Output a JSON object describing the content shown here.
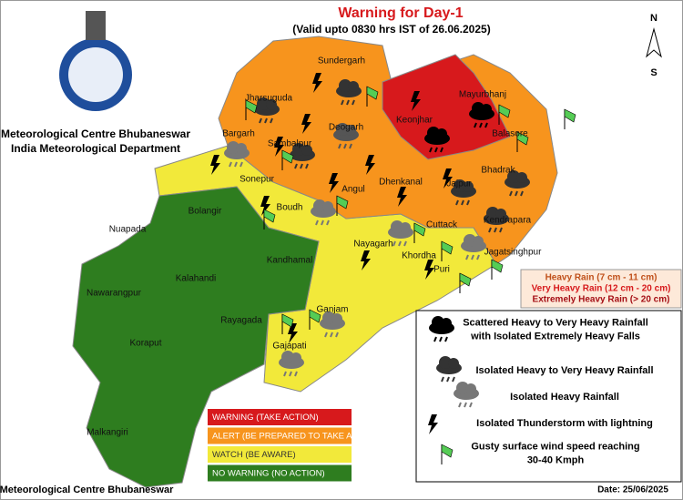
{
  "title": "Warning for Day-1",
  "subtitle": "(Valid upto 0830 hrs IST of 26.06.2025)",
  "organization": [
    "Meteorological Centre Bhubaneswar",
    "India Meteorological Department"
  ],
  "compass": {
    "north": "N",
    "south": "S"
  },
  "districts": [
    {
      "name": "Sundergarh",
      "color": "#f7941d"
    },
    {
      "name": "Jharsuguda",
      "color": "#f7941d"
    },
    {
      "name": "Deogarh",
      "color": "#f7941d"
    },
    {
      "name": "Sambalpur",
      "color": "#f7941d"
    },
    {
      "name": "Bargarh",
      "color": "#f2e93a"
    },
    {
      "name": "Keonjhar",
      "color": "#d7191c"
    },
    {
      "name": "Mayurbhanj",
      "color": "#d7191c"
    },
    {
      "name": "Balasore",
      "color": "#f7941d"
    },
    {
      "name": "Bhadrak",
      "color": "#f7941d"
    },
    {
      "name": "Sonepur",
      "color": "#f2e93a"
    },
    {
      "name": "Angul",
      "color": "#f7941d"
    },
    {
      "name": "Dhenkanal",
      "color": "#f7941d"
    },
    {
      "name": "Jajpur",
      "color": "#f7941d"
    },
    {
      "name": "Boudh",
      "color": "#f2e93a"
    },
    {
      "name": "Bolangir",
      "color": "#2e7d1f"
    },
    {
      "name": "Nuapada",
      "color": "#2e7d1f"
    },
    {
      "name": "Cuttack",
      "color": "#f2e93a"
    },
    {
      "name": "Kendrapara",
      "color": "#f7941d"
    },
    {
      "name": "Jagatsinghpur",
      "color": "#f2e93a"
    },
    {
      "name": "Nayagarh",
      "color": "#f2e93a"
    },
    {
      "name": "Khordha",
      "color": "#f2e93a"
    },
    {
      "name": "Puri",
      "color": "#f2e93a"
    },
    {
      "name": "Kandhamal",
      "color": "#2e7d1f"
    },
    {
      "name": "Kalahandi",
      "color": "#2e7d1f"
    },
    {
      "name": "Nawarangpur",
      "color": "#2e7d1f"
    },
    {
      "name": "Rayagada",
      "color": "#2e7d1f"
    },
    {
      "name": "Ganjam",
      "color": "#f2e93a"
    },
    {
      "name": "Gajapati",
      "color": "#f2e93a"
    },
    {
      "name": "Koraput",
      "color": "#2e7d1f"
    },
    {
      "name": "Malkangiri",
      "color": "#2e7d1f"
    }
  ],
  "rain_legend": [
    {
      "label": "Heavy Rain (7 cm - 11 cm)",
      "color": "#c0501a"
    },
    {
      "label": "Very Heavy Rain (12 cm - 20 cm)",
      "color": "#d7191c"
    },
    {
      "label": "Extremely Heavy Rain (> 20 cm)",
      "color": "#a50f15"
    }
  ],
  "icon_legend": [
    {
      "lines": [
        "Scattered Heavy to Very Heavy Rainfall",
        "with Isolated Extremely Heavy Falls"
      ]
    },
    {
      "lines": [
        "Isolated Heavy to Very Heavy Rainfall"
      ]
    },
    {
      "lines": [
        "Isolated Heavy Rainfall"
      ]
    },
    {
      "lines": [
        "Isolated Thunderstorm with lightning"
      ]
    },
    {
      "lines": [
        "Gusty surface wind speed reaching",
        "30-40 Kmph"
      ]
    }
  ],
  "warning_legend": [
    {
      "label": "WARNING (TAKE ACTION)",
      "color": "#d7191c"
    },
    {
      "label": "ALERT (BE PREPARED TO TAKE ACTION)",
      "color": "#f7941d"
    },
    {
      "label": "WATCH (BE AWARE)",
      "color": "#f2e93a"
    },
    {
      "label": "NO WARNING (NO ACTION)",
      "color": "#2e7d1f"
    }
  ],
  "footer": {
    "left": "Meteorological Centre Bhubaneswar",
    "right": "Date: 25/06/2025"
  }
}
